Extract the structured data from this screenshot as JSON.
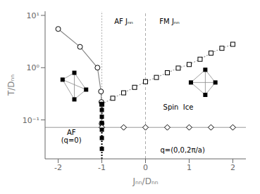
{
  "chart_data": {
    "type": "line",
    "x_label": "Jₙₙ/Dₙₙ",
    "y_label": "T/Dₙₙ",
    "log": "y",
    "grid": false,
    "xlim": [
      -2.3,
      2.3
    ],
    "xticks": [
      -2,
      -1,
      0,
      1,
      2
    ],
    "ylim": [
      0.018,
      12.0
    ],
    "yticks": [
      {
        "value": 0.1,
        "label": "10⁻¹"
      },
      {
        "value": 1,
        "label": "10⁰"
      },
      {
        "value": 10,
        "label": "10¹"
      }
    ],
    "series": [
      {
        "type": "line",
        "x": [
          -2.0,
          -1.5,
          -1.1,
          -1.02,
          -1.01,
          -1.005
        ],
        "values": [
          5.5,
          2.5,
          1.0,
          0.35,
          0.22,
          0.085
        ],
        "color": "#888888",
        "marker": "circle",
        "line_style": "solid"
      },
      {
        "type": "line",
        "x": [
          -1.0,
          -0.75,
          -0.5,
          -0.25,
          0.0,
          0.25,
          0.5,
          0.75,
          1.0,
          1.25,
          1.5,
          1.75,
          2.0
        ],
        "values": [
          0.2,
          0.26,
          0.33,
          0.42,
          0.54,
          0.65,
          0.8,
          0.98,
          1.15,
          1.45,
          1.9,
          2.35,
          2.8
        ],
        "color": "#999999",
        "marker": "square",
        "line_style": "dotted"
      },
      {
        "type": "scatter",
        "x": [
          -1.0,
          -0.5,
          0.0,
          0.5,
          1.0,
          1.5,
          2.0
        ],
        "values": [
          0.072,
          0.072,
          0.072,
          0.072,
          0.072,
          0.072,
          0.072
        ],
        "color": "black",
        "marker": "diamond"
      },
      {
        "type": "scatter",
        "x": [
          -1.0,
          -1.0,
          -1.0,
          -1.0,
          -1.0,
          -1.0,
          -1.0
        ],
        "values": [
          0.2,
          0.155,
          0.115,
          0.088,
          0.065,
          0.045,
          0.028
        ],
        "color": "black",
        "marker": "filled_square"
      }
    ],
    "reference_lines": [
      {
        "y": 0.072,
        "color": "#999999",
        "line_style": "solid"
      },
      {
        "x": 0.0,
        "color": "#aaaaaa",
        "line_style": "dashed"
      },
      {
        "x": -1.0,
        "y_range": [
          0.2,
          12.0
        ],
        "color": "#aaaaaa",
        "line_style": "dotted"
      },
      {
        "x": -1.0,
        "y_range": [
          0.018,
          0.2
        ],
        "color": "black",
        "line_style": "dotted"
      }
    ],
    "shapes": [
      {
        "x": [
          -1.9,
          -1.63,
          -1.36,
          -1.63
        ],
        "y": [
          0.589,
          0.798,
          0.38,
          0.247
        ],
        "color": "#888888",
        "marker": "filled_square"
      },
      {
        "x": [
          1.04,
          1.37,
          1.6,
          1.37
        ],
        "y": [
          0.52,
          0.91,
          0.52,
          0.3016
        ],
        "color": "#888888",
        "marker": "filled_square"
      }
    ],
    "annotations": [
      {
        "text": "Spin  Ice",
        "x": 0.75,
        "y": 0.175
      },
      {
        "text": "AF\n(q=0)",
        "x": -1.7,
        "y": 0.048
      },
      {
        "text": "q=(0,0,2π/a)",
        "x": 0.85,
        "y": 0.026
      },
      {
        "text": "AF Jₙₙ",
        "x": -0.5,
        "y": 7.5
      },
      {
        "text": "FM Jₙₙ",
        "x": 0.55,
        "y": 7.5
      }
    ]
  }
}
